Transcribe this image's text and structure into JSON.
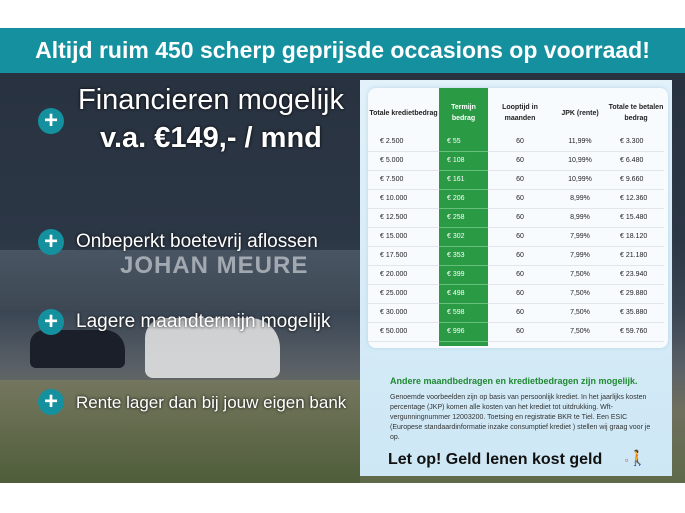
{
  "banner": {
    "text": "Altijd ruim 450 scherp geprijsde occasions op voorraad!"
  },
  "left": {
    "headline": "Financieren mogelijk",
    "price": "v.a. €149,- / mnd",
    "features": [
      "Onbeperkt boetevrij aflossen",
      "Lagere maandtermijn mogelijk",
      "Rente lager dan bij jouw eigen bank"
    ],
    "photo_sign": "JOHAN MEURE"
  },
  "table": {
    "headers": [
      "Totale kredietbedrag",
      "Termijn bedrag",
      "Looptijd in maanden",
      "JPK (rente)",
      "Totale te betalen bedrag"
    ],
    "rows": [
      [
        "€ 2.500",
        "€ 55",
        "60",
        "11,99%",
        "€ 3.300"
      ],
      [
        "€ 5.000",
        "€ 108",
        "60",
        "10,99%",
        "€ 6.480"
      ],
      [
        "€ 7.500",
        "€ 161",
        "60",
        "10,99%",
        "€ 9.660"
      ],
      [
        "€ 10.000",
        "€ 206",
        "60",
        "8,99%",
        "€ 12.360"
      ],
      [
        "€ 12.500",
        "€ 258",
        "60",
        "8,99%",
        "€ 15.480"
      ],
      [
        "€ 15.000",
        "€ 302",
        "60",
        "7,99%",
        "€ 18.120"
      ],
      [
        "€ 17.500",
        "€ 353",
        "60",
        "7,99%",
        "€ 21.180"
      ],
      [
        "€ 20.000",
        "€ 399",
        "60",
        "7,50%",
        "€ 23.940"
      ],
      [
        "€ 25.000",
        "€ 498",
        "60",
        "7,50%",
        "€ 29.880"
      ],
      [
        "€ 30.000",
        "€ 598",
        "60",
        "7,50%",
        "€ 35.880"
      ],
      [
        "€ 50.000",
        "€ 996",
        "60",
        "7,50%",
        "€ 59.760"
      ]
    ],
    "highlight_color": "#2a9a45"
  },
  "info": {
    "other": "Andere maandbedragen en kredietbedragen zijn mogelijk.",
    "disclaimer": "Genoemde voorbeelden zijn op basis van persoonlijk krediet. In het jaarlijks kosten percentage (JKP) komen alle kosten van het krediet tot uitdrukking. Wft-vergunningnummer 12003200. Toetsing en registratie BKR te Tiel. Een ESIC (Europese standaardinformatie inzake consumptief krediet ) stellen wij graag voor je op.",
    "warning": "Let op! Geld lenen kost geld"
  },
  "colors": {
    "brand": "#14909e"
  }
}
